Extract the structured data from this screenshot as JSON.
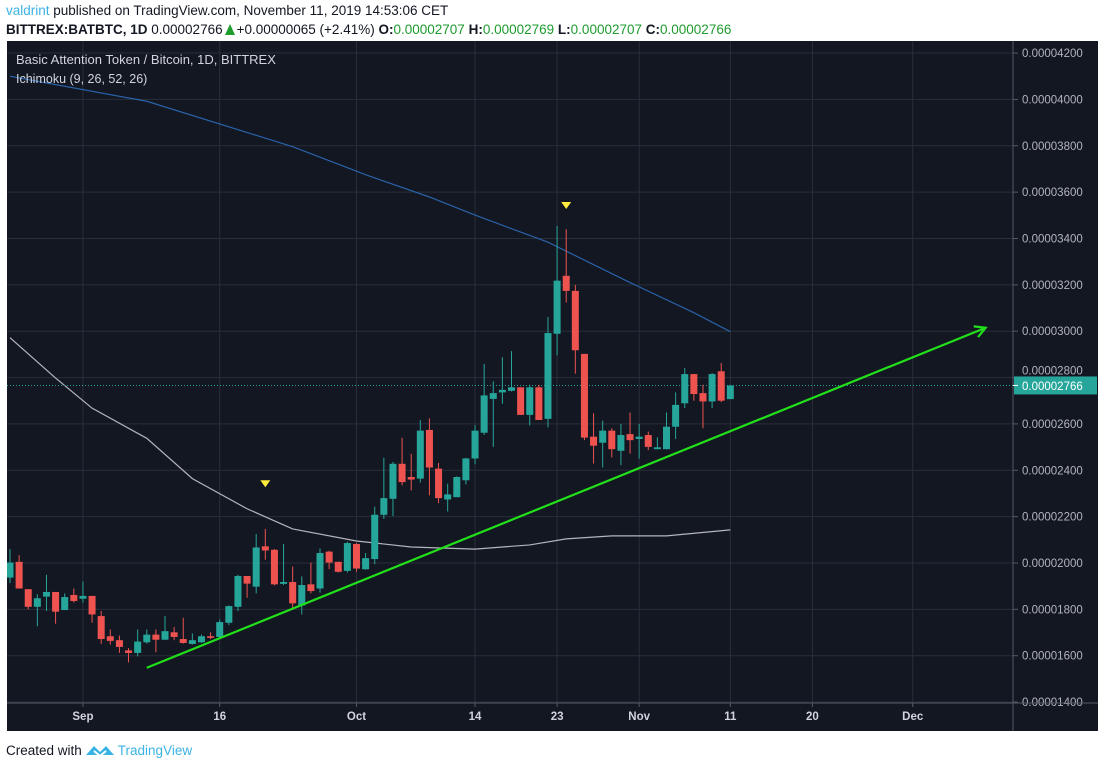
{
  "header": {
    "user": "valdrint",
    "published": " published on TradingView.com, November 11, 2019 14:53:06 CET",
    "symbol": "BITTREX:BATBTC, 1D",
    "last": "0.00002766",
    "change": "+0.00000065 (+2.41%)",
    "o_label": "O:",
    "o": "0.00002707",
    "h_label": "H:",
    "h": "0.00002769",
    "l_label": "L:",
    "l": "0.00002707",
    "c_label": "C:",
    "c": "0.00002766",
    "up_icon": "triangle-up"
  },
  "legend": {
    "title": "Basic Attention Token / Bitcoin, 1D, BITTREX",
    "indicator": "Ichimoku (9, 26, 52, 26)"
  },
  "footer": {
    "created": "Created with",
    "brand": "TradingView",
    "logo_icon": "tradingview-logo"
  },
  "colors": {
    "up": "#26a69a",
    "down": "#ef5350",
    "background": "#131722",
    "grid": "#2a2e39",
    "trendline": "#22e01a",
    "span_a": "#2962a8",
    "span_b": "#b2b5be",
    "marker": "#ffeb3b",
    "brand": "#3bb3e4"
  },
  "chart_data": {
    "type": "candlestick",
    "title": "Basic Attention Token / Bitcoin, 1D, BITTREX",
    "xlim": [
      "2019-08-24",
      "2019-12-12"
    ],
    "ylim": [
      1.396e-05,
      4.252e-05
    ],
    "grid": true,
    "y_ticks": [
      "0.00004200",
      "0.00004000",
      "0.00003800",
      "0.00003600",
      "0.00003400",
      "0.00003200",
      "0.00003000",
      "0.00002800",
      "0.00002600",
      "0.00002400",
      "0.00002200",
      "0.00002000",
      "0.00001800",
      "0.00001600",
      "0.00001400"
    ],
    "x_ticks": [
      {
        "date": "2019-09-01",
        "label": "Sep"
      },
      {
        "date": "2019-09-16",
        "label": "16"
      },
      {
        "date": "2019-10-01",
        "label": "Oct"
      },
      {
        "date": "2019-10-14",
        "label": "14"
      },
      {
        "date": "2019-10-23",
        "label": "23"
      },
      {
        "date": "2019-11-01",
        "label": "Nov"
      },
      {
        "date": "2019-11-11",
        "label": "11"
      },
      {
        "date": "2019-11-20",
        "label": "20"
      },
      {
        "date": "2019-12-01",
        "label": "Dec"
      }
    ],
    "last_price": {
      "value": 2.766e-05,
      "label": "0.00002766"
    },
    "candles_columns": [
      "date",
      "open",
      "high",
      "low",
      "close"
    ],
    "candles": [
      [
        "2019-08-24",
        1.937e-05,
        2.06e-05,
        1.913e-05,
        2.002e-05
      ],
      [
        "2019-08-25",
        2.005e-05,
        2.034e-05,
        1.89e-05,
        1.89e-05
      ],
      [
        "2019-08-26",
        1.887e-05,
        1.887e-05,
        1.8e-05,
        1.811e-05
      ],
      [
        "2019-08-27",
        1.811e-05,
        1.865e-05,
        1.727e-05,
        1.848e-05
      ],
      [
        "2019-08-28",
        1.855e-05,
        1.949e-05,
        1.793e-05,
        1.875e-05
      ],
      [
        "2019-08-29",
        1.875e-05,
        1.875e-05,
        1.738e-05,
        1.79e-05
      ],
      [
        "2019-08-30",
        1.797e-05,
        1.869e-05,
        1.797e-05,
        1.853e-05
      ],
      [
        "2019-08-31",
        1.862e-05,
        1.89e-05,
        1.829e-05,
        1.836e-05
      ],
      [
        "2019-09-01",
        1.846e-05,
        1.92e-05,
        1.829e-05,
        1.858e-05
      ],
      [
        "2019-09-02",
        1.858e-05,
        1.858e-05,
        1.742e-05,
        1.778e-05
      ],
      [
        "2019-09-03",
        1.771e-05,
        1.793e-05,
        1.651e-05,
        1.672e-05
      ],
      [
        "2019-09-04",
        1.684e-05,
        1.713e-05,
        1.648e-05,
        1.664e-05
      ],
      [
        "2019-09-05",
        1.667e-05,
        1.687e-05,
        1.612e-05,
        1.638e-05
      ],
      [
        "2019-09-06",
        1.623e-05,
        1.633e-05,
        1.571e-05,
        1.612e-05
      ],
      [
        "2019-09-07",
        1.612e-05,
        1.713e-05,
        1.597e-05,
        1.661e-05
      ],
      [
        "2019-09-08",
        1.658e-05,
        1.713e-05,
        1.652e-05,
        1.691e-05
      ],
      [
        "2019-09-09",
        1.691e-05,
        1.713e-05,
        1.615e-05,
        1.669e-05
      ],
      [
        "2019-09-10",
        1.669e-05,
        1.771e-05,
        1.669e-05,
        1.706e-05
      ],
      [
        "2019-09-11",
        1.701e-05,
        1.724e-05,
        1.667e-05,
        1.681e-05
      ],
      [
        "2019-09-12",
        1.672e-05,
        1.764e-05,
        1.652e-05,
        1.655e-05
      ],
      [
        "2019-09-13",
        1.651e-05,
        1.696e-05,
        1.648e-05,
        1.667e-05
      ],
      [
        "2019-09-14",
        1.658e-05,
        1.691e-05,
        1.655e-05,
        1.684e-05
      ],
      [
        "2019-09-15",
        1.684e-05,
        1.701e-05,
        1.672e-05,
        1.677e-05
      ],
      [
        "2019-09-16",
        1.681e-05,
        1.756e-05,
        1.677e-05,
        1.745e-05
      ],
      [
        "2019-09-17",
        1.742e-05,
        1.817e-05,
        1.732e-05,
        1.814e-05
      ],
      [
        "2019-09-18",
        1.811e-05,
        1.949e-05,
        1.793e-05,
        1.944e-05
      ],
      [
        "2019-09-19",
        1.944e-05,
        1.944e-05,
        1.85e-05,
        1.911e-05
      ],
      [
        "2019-09-20",
        1.898e-05,
        2.125e-05,
        1.869e-05,
        2.067e-05
      ],
      [
        "2019-09-21",
        2.072e-05,
        2.147e-05,
        2.014e-05,
        2.054e-05
      ],
      [
        "2019-09-22",
        2.057e-05,
        2.06e-05,
        1.904e-05,
        1.908e-05
      ],
      [
        "2019-09-23",
        1.91e-05,
        2.082e-05,
        1.905e-05,
        1.918e-05
      ],
      [
        "2019-09-24",
        1.918e-05,
        1.985e-05,
        1.807e-05,
        1.826e-05
      ],
      [
        "2019-09-25",
        1.817e-05,
        1.942e-05,
        1.778e-05,
        1.905e-05
      ],
      [
        "2019-09-26",
        1.908e-05,
        2.002e-05,
        1.869e-05,
        1.879e-05
      ],
      [
        "2019-09-27",
        1.89e-05,
        2.063e-05,
        1.872e-05,
        2.043e-05
      ],
      [
        "2019-09-28",
        2.049e-05,
        2.053e-05,
        1.973e-05,
        2.002e-05
      ],
      [
        "2019-09-29",
        2.005e-05,
        2.005e-05,
        1.959e-05,
        1.962e-05
      ],
      [
        "2019-09-30",
        1.966e-05,
        2.092e-05,
        1.959e-05,
        2.086e-05
      ],
      [
        "2019-10-01",
        2.082e-05,
        2.086e-05,
        1.962e-05,
        1.976e-05
      ],
      [
        "2019-10-02",
        1.973e-05,
        2.043e-05,
        1.971e-05,
        2.021e-05
      ],
      [
        "2019-10-03",
        2.017e-05,
        2.243e-05,
        1.995e-05,
        2.208e-05
      ],
      [
        "2019-10-04",
        2.208e-05,
        2.454e-05,
        2.19e-05,
        2.28e-05
      ],
      [
        "2019-10-05",
        2.277e-05,
        2.436e-05,
        2.202e-05,
        2.428e-05
      ],
      [
        "2019-10-06",
        2.428e-05,
        2.54e-05,
        2.335e-05,
        2.349e-05
      ],
      [
        "2019-10-07",
        2.371e-05,
        2.471e-05,
        2.313e-05,
        2.36e-05
      ],
      [
        "2019-10-08",
        2.364e-05,
        2.617e-05,
        2.347e-05,
        2.571e-05
      ],
      [
        "2019-10-09",
        2.574e-05,
        2.624e-05,
        2.292e-05,
        2.412e-05
      ],
      [
        "2019-10-10",
        2.407e-05,
        2.432e-05,
        2.258e-05,
        2.28e-05
      ],
      [
        "2019-10-11",
        2.274e-05,
        2.342e-05,
        2.222e-05,
        2.296e-05
      ],
      [
        "2019-10-12",
        2.284e-05,
        2.374e-05,
        2.284e-05,
        2.371e-05
      ],
      [
        "2019-10-13",
        2.357e-05,
        2.454e-05,
        2.339e-05,
        2.451e-05
      ],
      [
        "2019-10-14",
        2.451e-05,
        2.595e-05,
        2.426e-05,
        2.571e-05
      ],
      [
        "2019-10-15",
        2.562e-05,
        2.859e-05,
        2.552e-05,
        2.723e-05
      ],
      [
        "2019-10-16",
        2.708e-05,
        2.784e-05,
        2.501e-05,
        2.733e-05
      ],
      [
        "2019-10-17",
        2.736e-05,
        2.888e-05,
        2.687e-05,
        2.747e-05
      ],
      [
        "2019-10-18",
        2.743e-05,
        2.914e-05,
        2.74e-05,
        2.758e-05
      ],
      [
        "2019-10-19",
        2.758e-05,
        2.758e-05,
        2.639e-05,
        2.639e-05
      ],
      [
        "2019-10-20",
        2.639e-05,
        2.769e-05,
        2.593e-05,
        2.758e-05
      ],
      [
        "2019-10-21",
        2.758e-05,
        2.769e-05,
        2.617e-05,
        2.617e-05
      ],
      [
        "2019-10-22",
        2.622e-05,
        3.061e-05,
        2.585e-05,
        2.992e-05
      ],
      [
        "2019-10-23",
        2.989e-05,
        3.454e-05,
        2.896e-05,
        3.218e-05
      ],
      [
        "2019-10-24",
        3.239e-05,
        3.44e-05,
        3.124e-05,
        3.174e-05
      ],
      [
        "2019-10-25",
        3.174e-05,
        3.2e-05,
        2.817e-05,
        2.918e-05
      ],
      [
        "2019-10-26",
        2.902e-05,
        2.902e-05,
        2.53e-05,
        2.541e-05
      ],
      [
        "2019-10-27",
        2.545e-05,
        2.646e-05,
        2.429e-05,
        2.506e-05
      ],
      [
        "2019-10-28",
        2.519e-05,
        2.614e-05,
        2.412e-05,
        2.571e-05
      ],
      [
        "2019-10-29",
        2.571e-05,
        2.581e-05,
        2.455e-05,
        2.491e-05
      ],
      [
        "2019-10-30",
        2.484e-05,
        2.6e-05,
        2.422e-05,
        2.552e-05
      ],
      [
        "2019-10-31",
        2.556e-05,
        2.649e-05,
        2.472e-05,
        2.53e-05
      ],
      [
        "2019-11-01",
        2.535e-05,
        2.6e-05,
        2.451e-05,
        2.545e-05
      ],
      [
        "2019-11-02",
        2.552e-05,
        2.567e-05,
        2.487e-05,
        2.501e-05
      ],
      [
        "2019-11-03",
        2.491e-05,
        2.542e-05,
        2.491e-05,
        2.499e-05
      ],
      [
        "2019-11-04",
        2.491e-05,
        2.649e-05,
        2.491e-05,
        2.588e-05
      ],
      [
        "2019-11-05",
        2.588e-05,
        2.736e-05,
        2.535e-05,
        2.682e-05
      ],
      [
        "2019-11-06",
        2.689e-05,
        2.841e-05,
        2.668e-05,
        2.815e-05
      ],
      [
        "2019-11-07",
        2.815e-05,
        2.815e-05,
        2.7e-05,
        2.729e-05
      ],
      [
        "2019-11-08",
        2.733e-05,
        2.769e-05,
        2.581e-05,
        2.697e-05
      ],
      [
        "2019-11-09",
        2.697e-05,
        2.82e-05,
        2.668e-05,
        2.815e-05
      ],
      [
        "2019-11-10",
        2.827e-05,
        2.863e-05,
        2.694e-05,
        2.7e-05
      ],
      [
        "2019-11-11",
        2.707e-05,
        2.769e-05,
        2.707e-05,
        2.766e-05
      ]
    ],
    "lines": [
      {
        "role": "ichimoku-blue",
        "points": [
          [
            "2019-08-24",
            4.1e-05
          ],
          [
            "2019-09-08",
            3.992e-05
          ],
          [
            "2019-09-24",
            3.796e-05
          ],
          [
            "2019-10-02",
            3.675e-05
          ],
          [
            "2019-10-09",
            3.579e-05
          ],
          [
            "2019-10-14",
            3.501e-05
          ],
          [
            "2019-10-22",
            3.384e-05
          ],
          [
            "2019-10-31",
            3.21e-05
          ],
          [
            "2019-11-07",
            3.08e-05
          ],
          [
            "2019-11-11",
            2.998e-05
          ]
        ]
      },
      {
        "role": "ichimoku-grey",
        "points": [
          [
            "2019-08-24",
            2.972e-05
          ],
          [
            "2019-08-29",
            2.798e-05
          ],
          [
            "2019-09-02",
            2.668e-05
          ],
          [
            "2019-09-08",
            2.538e-05
          ],
          [
            "2019-09-13",
            2.364e-05
          ],
          [
            "2019-09-19",
            2.234e-05
          ],
          [
            "2019-09-24",
            2.147e-05
          ],
          [
            "2019-10-01",
            2.095e-05
          ],
          [
            "2019-10-07",
            2.069e-05
          ],
          [
            "2019-10-14",
            2.06e-05
          ],
          [
            "2019-10-20",
            2.078e-05
          ],
          [
            "2019-10-24",
            2.104e-05
          ],
          [
            "2019-10-29",
            2.117e-05
          ],
          [
            "2019-11-04",
            2.117e-05
          ],
          [
            "2019-11-11",
            2.143e-05
          ]
        ]
      }
    ],
    "trendline": {
      "from": [
        "2019-09-08",
        1.548e-05
      ],
      "to": [
        "2019-12-09",
        3.015e-05
      ],
      "arrow": true
    },
    "markers": [
      {
        "date": "2019-09-21",
        "price": 2.34e-05,
        "shape": "triangle-down"
      },
      {
        "date": "2019-10-24",
        "price": 3.54e-05,
        "shape": "triangle-down"
      }
    ]
  }
}
